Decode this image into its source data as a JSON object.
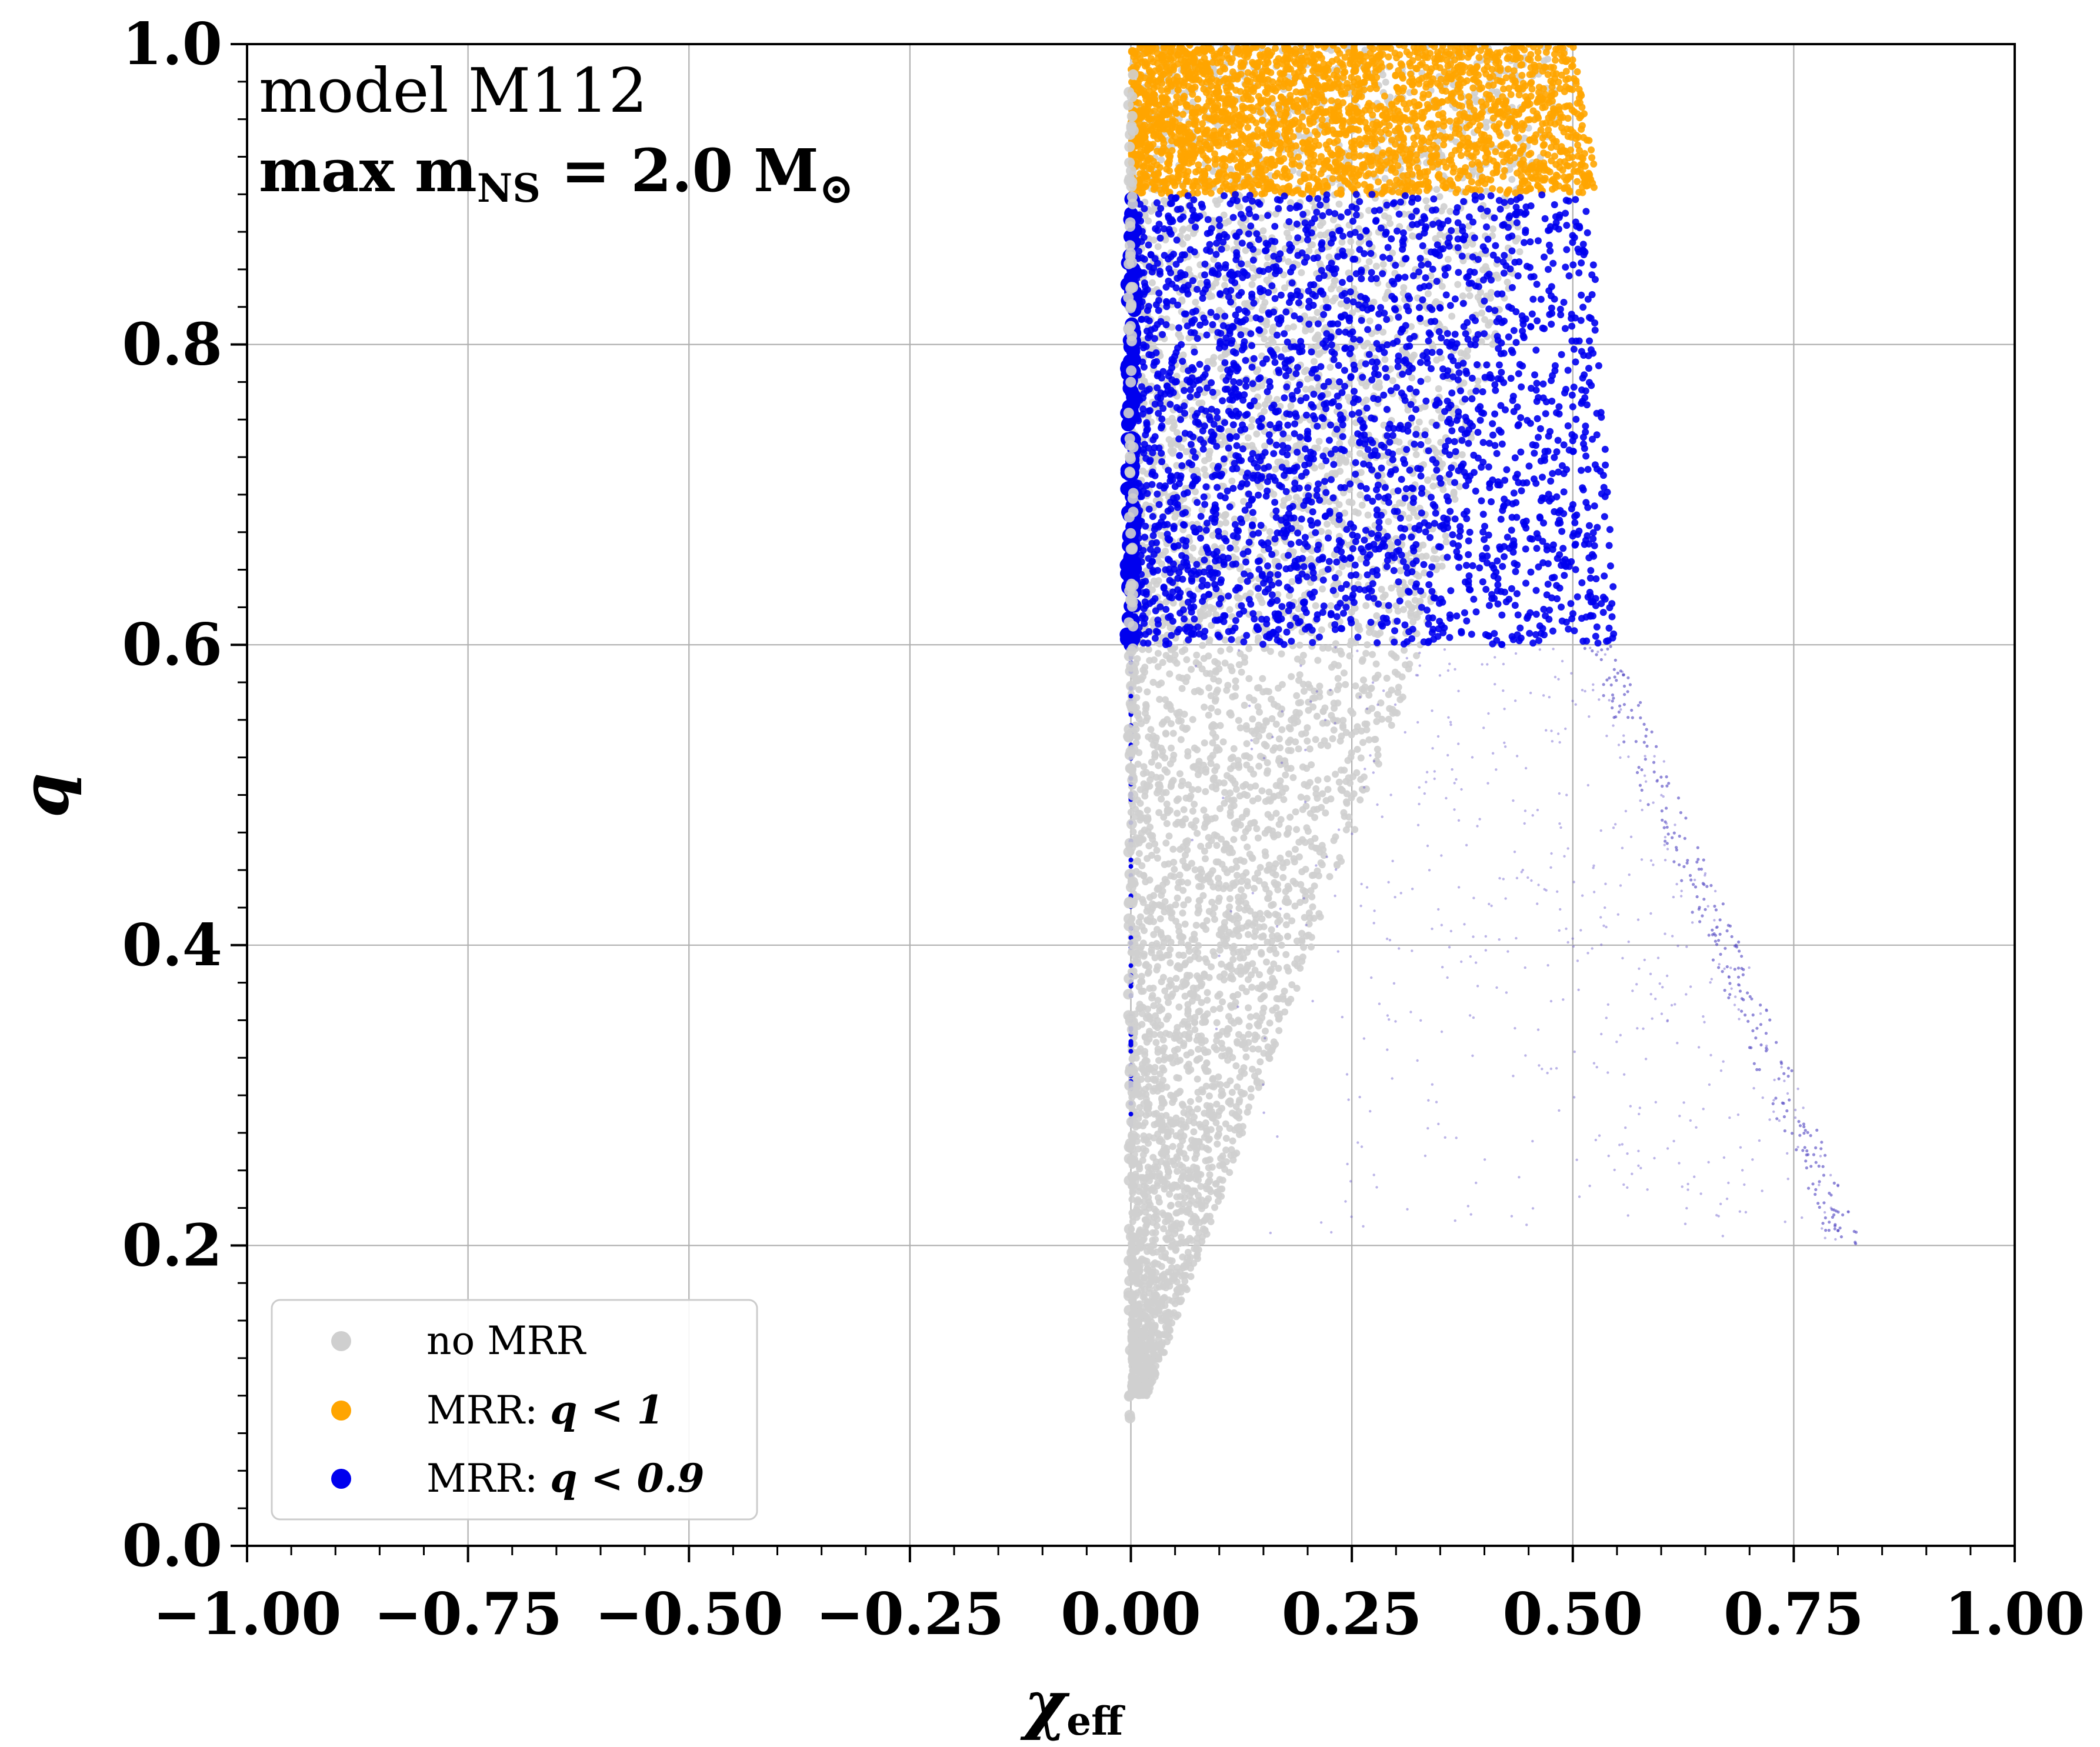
{
  "chart_data": {
    "type": "scatter",
    "xlabel": "χ",
    "xlabel_sub": "eff",
    "ylabel": "q",
    "xlim": [
      -1.0,
      1.0
    ],
    "ylim": [
      0.0,
      1.0
    ],
    "x_ticks": [
      "−1.00",
      "−0.75",
      "−0.50",
      "−0.25",
      "0.00",
      "0.25",
      "0.50",
      "0.75",
      "1.00"
    ],
    "x_tick_values": [
      -1.0,
      -0.75,
      -0.5,
      -0.25,
      0.0,
      0.25,
      0.5,
      0.75,
      1.0
    ],
    "y_ticks": [
      "0.0",
      "0.2",
      "0.4",
      "0.6",
      "0.8",
      "1.0"
    ],
    "y_tick_values": [
      0.0,
      0.2,
      0.4,
      0.6,
      0.8,
      1.0
    ],
    "grid": true,
    "legend_position": "bottom-left",
    "annotation": {
      "line1": "model M112",
      "line2_prefix": "max m",
      "line2_sub": "NS",
      "line2_suffix": " = 2.0 M",
      "line2_sun": "⊙"
    },
    "legend": [
      {
        "label_plain": "no MRR",
        "label_math": "",
        "color": "#cfcfcf"
      },
      {
        "label_plain": "MRR: ",
        "label_math": "q < 1",
        "color": "#ffa500"
      },
      {
        "label_plain": "MRR: ",
        "label_math": "q < 0.9",
        "color": "#0000ee"
      }
    ],
    "series": [
      {
        "name": "no MRR",
        "color": "#cfcfcf",
        "regions": [
          {
            "q": [
              0.1,
              0.6
            ],
            "x_left": [
              0.0,
              0.0
            ],
            "x_right": [
              0.02,
              0.33
            ]
          },
          {
            "q": [
              0.6,
              1.0
            ],
            "x_left": [
              0.0,
              0.0
            ],
            "x_right": [
              0.33,
              0.5
            ]
          }
        ]
      },
      {
        "name": "MRR: q < 1",
        "color": "#ffa500",
        "regions": [
          {
            "q": [
              0.9,
              1.0
            ],
            "x_left": [
              0.0,
              0.0
            ],
            "x_right": [
              0.53,
              0.5
            ]
          }
        ]
      },
      {
        "name": "MRR: q < 0.9",
        "color": "#0000ee",
        "regions": [
          {
            "q": [
              0.6,
              0.9
            ],
            "x_left": [
              0.0,
              0.0
            ],
            "x_right": [
              0.55,
              0.52
            ]
          }
        ],
        "sparse_tail": {
          "q": [
            0.2,
            0.6
          ],
          "x_right": [
            0.83,
            0.55
          ]
        }
      }
    ]
  }
}
